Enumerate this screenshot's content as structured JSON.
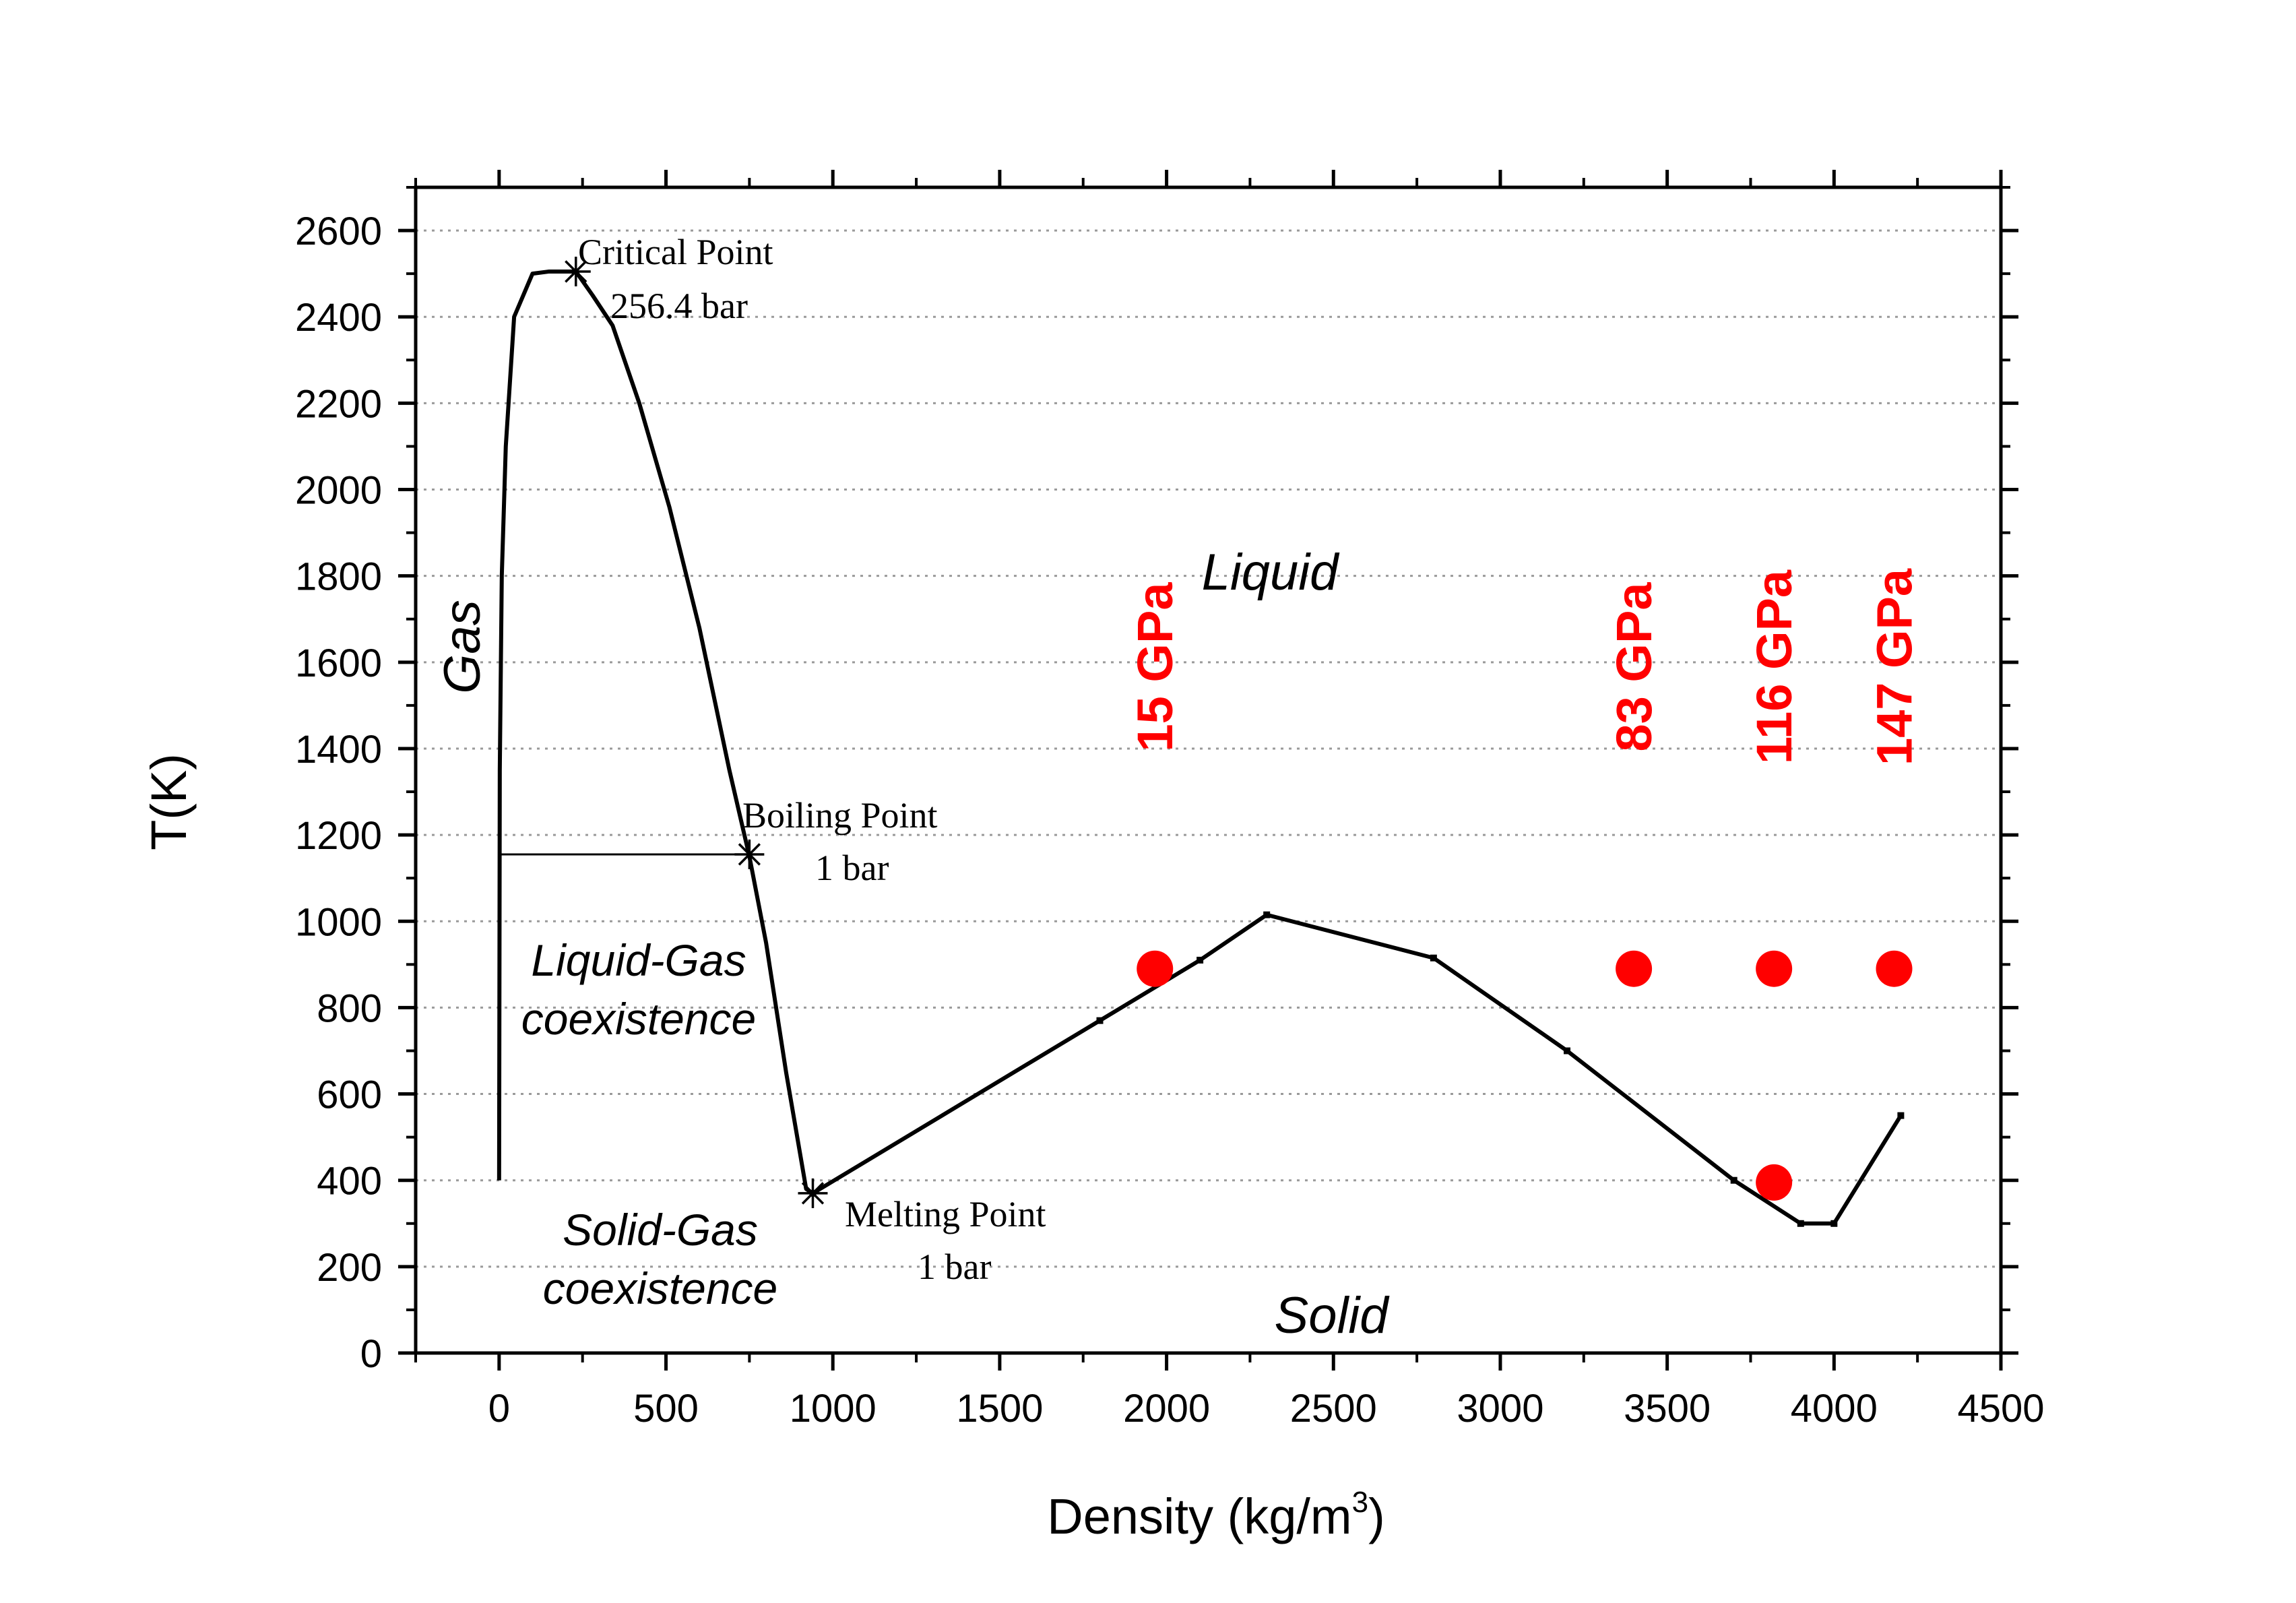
{
  "chart_data": {
    "type": "line",
    "title": "",
    "xlabel": "Density (kg/m",
    "xlabel_sup": "3",
    "xlabel_end": ")",
    "ylabel": "T(K)",
    "xlim": [
      -250,
      4500
    ],
    "ylim": [
      0,
      2700
    ],
    "xticks": [
      0,
      500,
      1000,
      1500,
      2000,
      2500,
      3000,
      3500,
      4000,
      4500
    ],
    "yticks": [
      0,
      200,
      400,
      600,
      800,
      1000,
      1200,
      1400,
      1600,
      1800,
      2000,
      2200,
      2400,
      2600
    ],
    "grid": "horizontal dotted",
    "accent_color": "#ff0000",
    "series": [
      {
        "name": "liquid-gas coexistence boundary",
        "color": "#000000",
        "x": [
          0,
          2,
          8,
          20,
          45,
          100,
          150,
          230,
          280,
          340,
          420,
          510,
          600,
          690,
          750,
          800,
          860,
          920,
          940
        ],
        "y": [
          400,
          1350,
          1800,
          2100,
          2400,
          2500,
          2505,
          2505,
          2450,
          2380,
          2200,
          1960,
          1680,
          1350,
          1150,
          950,
          650,
          380,
          370
        ]
      },
      {
        "name": "melting curve",
        "color": "#000000",
        "x": [
          940,
          1800,
          2100,
          2300,
          2800,
          3200,
          3700,
          3900,
          4000,
          4200
        ],
        "y": [
          370,
          770,
          910,
          1015,
          915,
          700,
          400,
          300,
          300,
          550
        ]
      },
      {
        "name": "boiling line 1 bar",
        "color": "#000000",
        "x": [
          0,
          750
        ],
        "y": [
          1155,
          1155
        ]
      }
    ],
    "markers": [
      {
        "name": "critical",
        "x": 230,
        "y": 2505
      },
      {
        "name": "boiling",
        "x": 750,
        "y": 1155
      },
      {
        "name": "melting",
        "x": 940,
        "y": 370
      }
    ],
    "experiments": {
      "color": "#ff0000",
      "points": [
        {
          "x": 1965,
          "y": 890
        },
        {
          "x": 3400,
          "y": 890
        },
        {
          "x": 3820,
          "y": 890
        },
        {
          "x": 4180,
          "y": 890
        },
        {
          "x": 3820,
          "y": 395
        }
      ],
      "labels": [
        {
          "text": "15 GPa",
          "x": 1965
        },
        {
          "text": "83 GPa",
          "x": 3400
        },
        {
          "text": "116 GPa",
          "x": 3820
        },
        {
          "text": "147 GPa",
          "x": 4180
        }
      ]
    },
    "annotations": {
      "critical": [
        "Critical Point",
        "256.4 bar"
      ],
      "boiling": [
        "Boiling Point",
        "1 bar"
      ],
      "melting": [
        "Melting Point",
        "1 bar"
      ]
    },
    "regions": {
      "gas": "Gas",
      "liquid": "Liquid",
      "liquid_gas": [
        "Liquid-Gas",
        "coexistence"
      ],
      "solid_gas": [
        "Solid-Gas",
        "coexistence"
      ],
      "solid": "Solid"
    }
  }
}
